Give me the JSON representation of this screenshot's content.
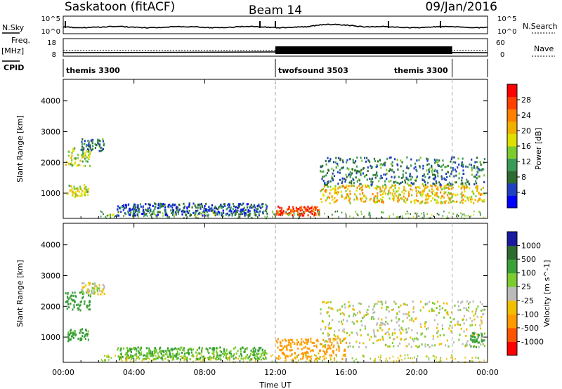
{
  "header": {
    "station": "Saskatoon (fitACF)",
    "beam": "Beam 14",
    "date": "09/Jan/2016"
  },
  "top_panels": {
    "nsky_label": "N.Sky",
    "nsearch_label": "N.Search",
    "freq_label_1": "Freq.",
    "freq_label_2": "[MHz]",
    "nave_label": "Nave",
    "cpid_label": "CPID",
    "noise_ticks": [
      "10^5",
      "10^0"
    ],
    "freq_ticks": [
      "18",
      "8"
    ],
    "nave_ticks": [
      "60",
      "0"
    ]
  },
  "cpid_segments": [
    {
      "label": "themis 3300",
      "start_hour": 0,
      "end_hour": 12
    },
    {
      "label": "twofsound 3503",
      "start_hour": 12,
      "end_hour": 22
    },
    {
      "label": "themis 3300",
      "start_hour": 22,
      "end_hour": 24
    }
  ],
  "axes": {
    "x_ticks": [
      "00:00",
      "04:00",
      "08:00",
      "12:00",
      "16:00",
      "20:00",
      "00:00"
    ],
    "x_tick_hours": [
      0,
      4,
      8,
      12,
      16,
      20,
      24
    ],
    "x_label": "Time UT",
    "y_label": "Slant Range [km]",
    "y_ticks": [
      "4000",
      "3000",
      "2000",
      "1000"
    ],
    "y_tick_values": [
      4000,
      3000,
      2000,
      1000
    ],
    "y_range": [
      180,
      4700
    ],
    "x_range_hours": [
      0,
      24
    ]
  },
  "power_scale": {
    "label": "Power [dB]",
    "ticks": [
      "28",
      "24",
      "20",
      "16",
      "12",
      "8",
      "4"
    ],
    "colors": [
      "#0000ff",
      "#2040c0",
      "#2e6b2e",
      "#3a9a5a",
      "#7ccc30",
      "#e0e000",
      "#f0b000",
      "#ff8000",
      "#ff4000",
      "#ff0000"
    ]
  },
  "velocity_scale": {
    "label": "Velocity [m s^-1]",
    "ticks": [
      "1000",
      "500",
      "100",
      "25",
      "-25",
      "-100",
      "-500",
      "-1000"
    ],
    "colors": [
      "#1a1aa0",
      "#2e6b2e",
      "#3aa03a",
      "#7ccc30",
      "#bbbbbb",
      "#f0c000",
      "#ff9900",
      "#ff5500",
      "#ff0000"
    ]
  },
  "chart_data": {
    "type": "heatmap",
    "title": "Saskatoon (fitACF) Beam 14 09/Jan/2016",
    "xlabel": "Time UT",
    "ylabel": "Slant Range [km]",
    "xlim_hours": [
      0,
      24
    ],
    "ylim_km": [
      180,
      4700
    ],
    "grid": false,
    "panels": [
      {
        "name": "Power [dB]",
        "scale": [
          0,
          30
        ],
        "regions": [
          {
            "t0": 0.2,
            "t1": 1.4,
            "r0": 900,
            "r1": 1300,
            "value": 16
          },
          {
            "t0": 0.1,
            "t1": 1.5,
            "r0": 1900,
            "r1": 2500,
            "value": 14
          },
          {
            "t0": 1.0,
            "t1": 2.3,
            "r0": 2400,
            "r1": 2800,
            "value": 8
          },
          {
            "t0": 3.0,
            "t1": 11.5,
            "r0": 300,
            "r1": 700,
            "value": 6
          },
          {
            "t0": 12.0,
            "t1": 14.5,
            "r0": 300,
            "r1": 600,
            "value": 26
          },
          {
            "t0": 14.5,
            "t1": 23.8,
            "r0": 700,
            "r1": 1300,
            "value": 18
          },
          {
            "t0": 14.5,
            "t1": 23.8,
            "r0": 1300,
            "r1": 2200,
            "value": 8
          }
        ]
      },
      {
        "name": "Velocity [m s^-1]",
        "scale": [
          -1000,
          1000
        ],
        "regions": [
          {
            "t0": 0.2,
            "t1": 1.4,
            "r0": 900,
            "r1": 1300,
            "value": 150
          },
          {
            "t0": 0.1,
            "t1": 1.5,
            "r0": 1900,
            "r1": 2500,
            "value": 300
          },
          {
            "t0": 1.0,
            "t1": 2.3,
            "r0": 2400,
            "r1": 2800,
            "value": 0
          },
          {
            "t0": 3.0,
            "t1": 11.5,
            "r0": 300,
            "r1": 700,
            "value": 100
          },
          {
            "t0": 12.0,
            "t1": 16.0,
            "r0": 300,
            "r1": 1000,
            "value": -150
          },
          {
            "t0": 14.5,
            "t1": 23.8,
            "r0": 700,
            "r1": 2200,
            "value": 0
          },
          {
            "t0": 23.0,
            "t1": 23.8,
            "r0": 700,
            "r1": 1200,
            "value": 150
          }
        ]
      }
    ]
  }
}
